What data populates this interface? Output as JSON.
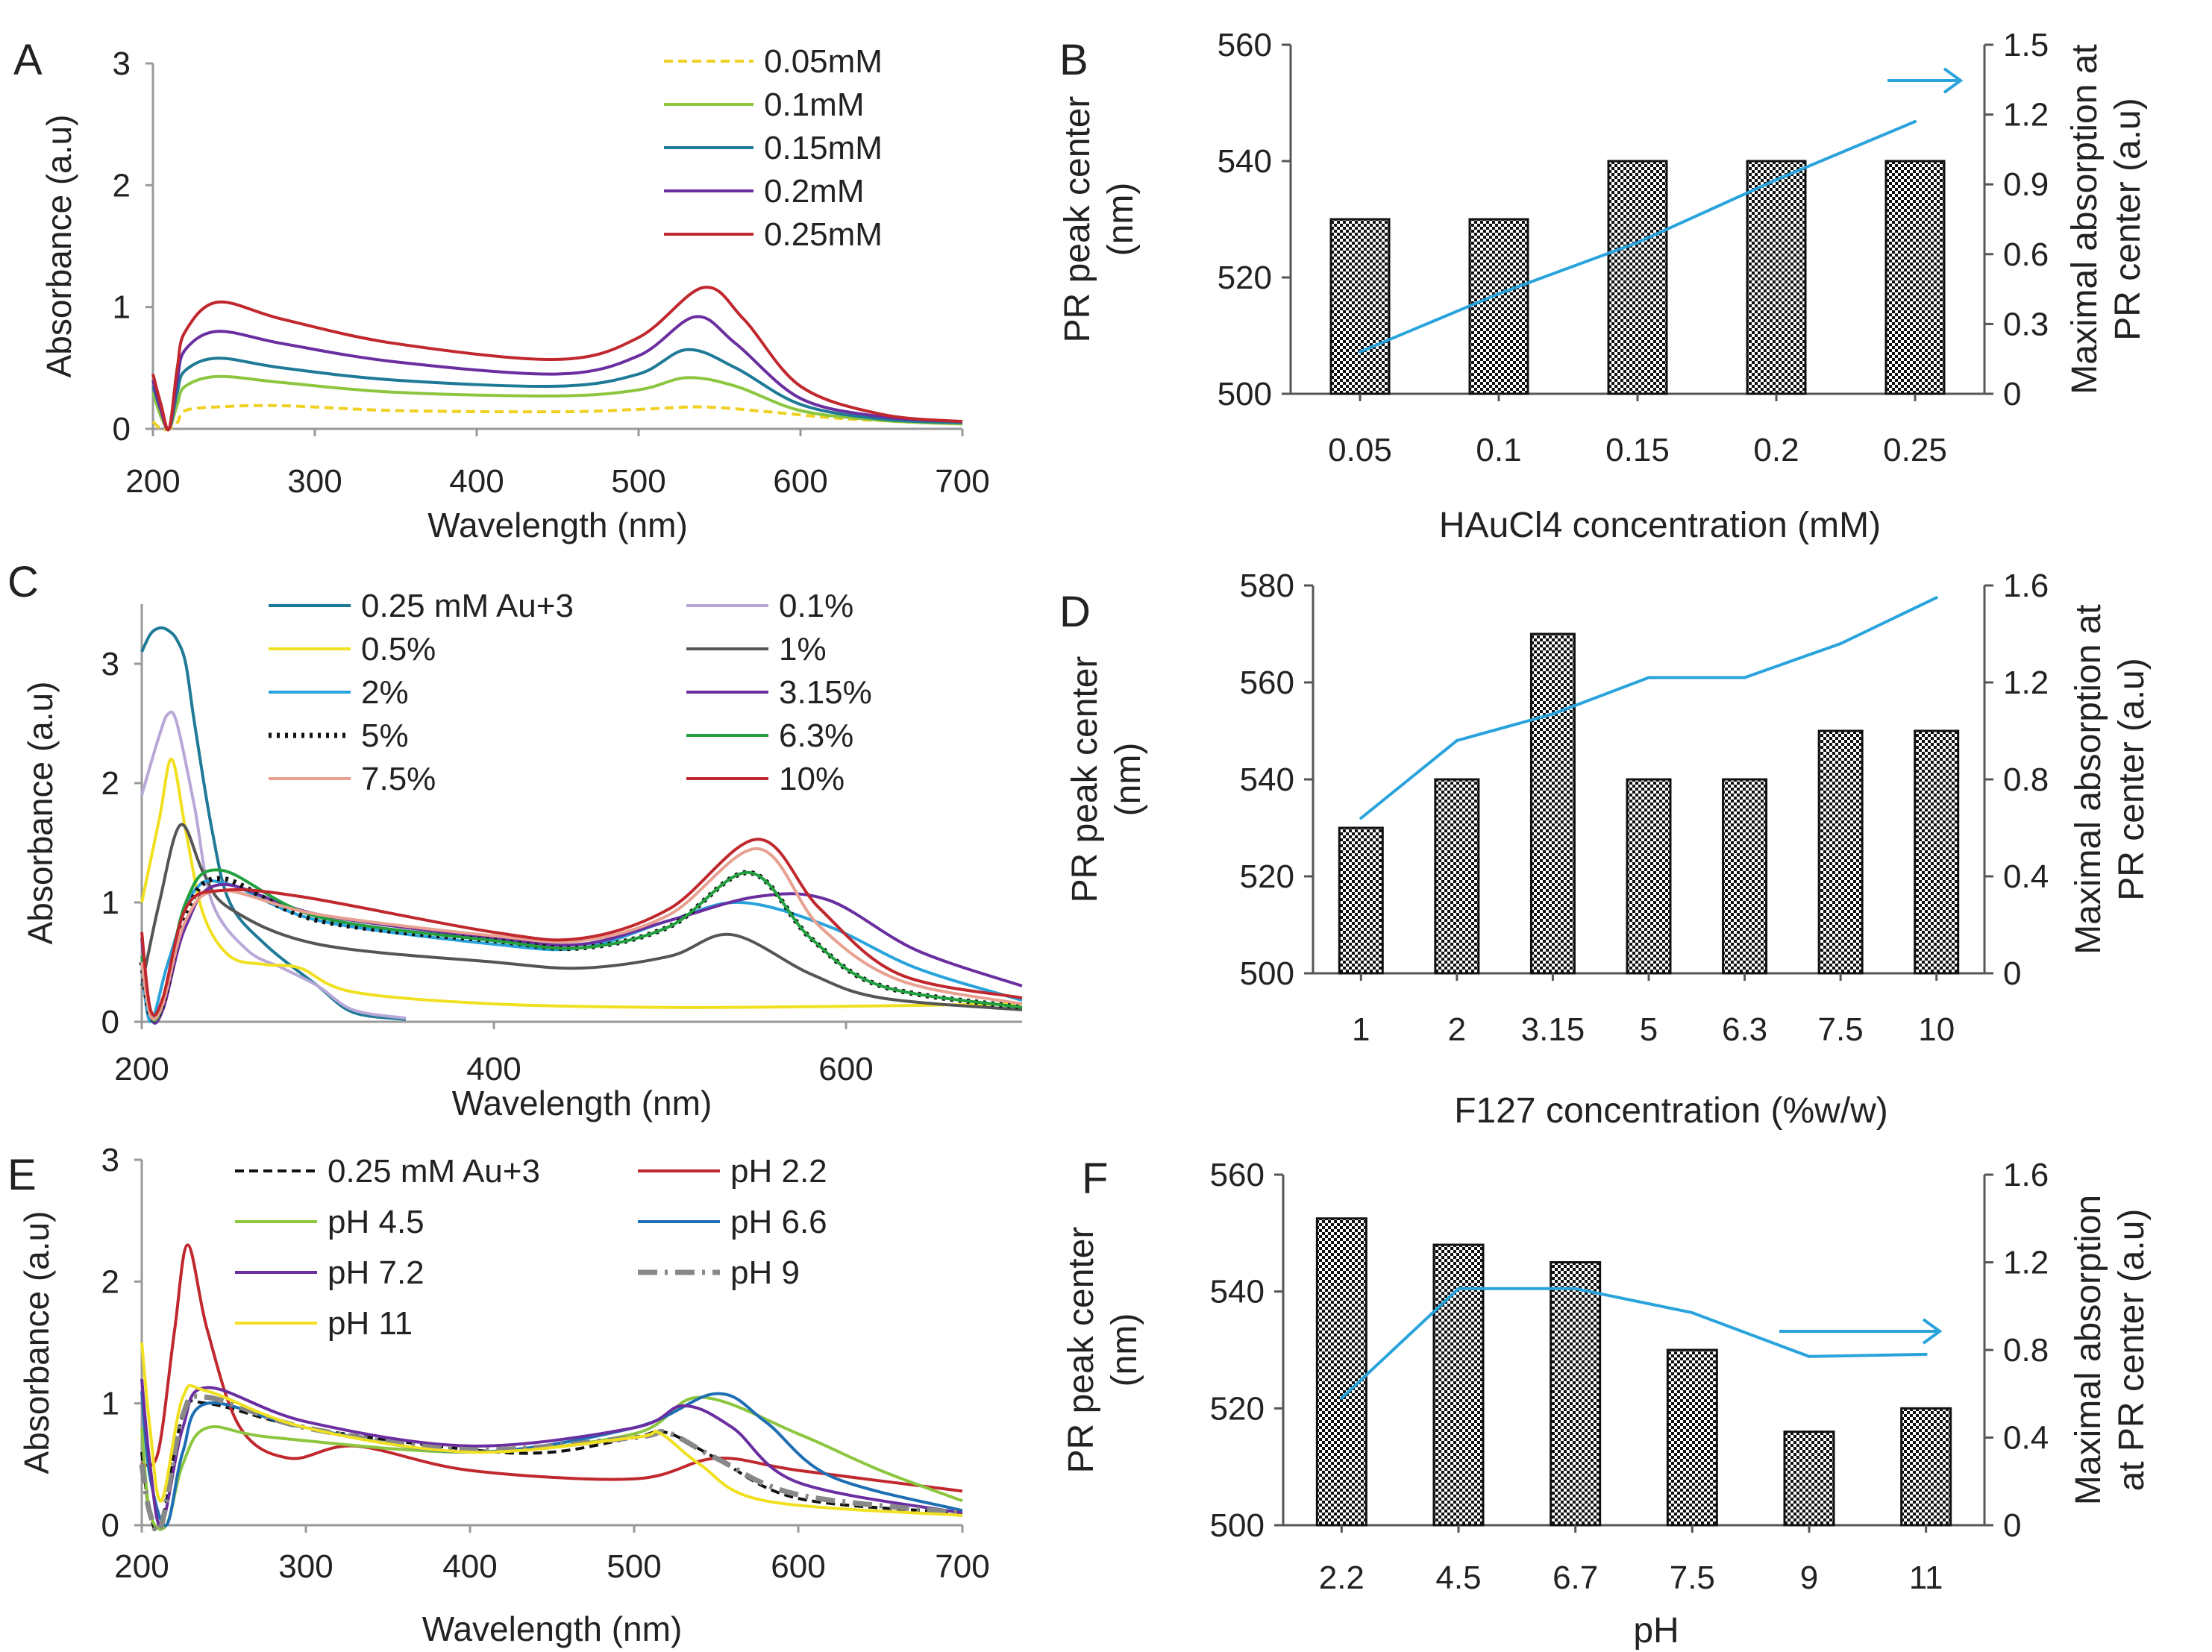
{
  "panels": {
    "A": "A",
    "B": "B",
    "C": "C",
    "D": "D",
    "E": "E",
    "F": "F"
  },
  "chart_data": [
    {
      "id": "A",
      "type": "line",
      "xlabel": "Wavelength (nm)",
      "ylabel": "Absorbance (a.u)",
      "xlim": [
        200,
        700
      ],
      "ylim": [
        0,
        3
      ],
      "xticks": [
        "200",
        "300",
        "400",
        "500",
        "600",
        "700"
      ],
      "yticks": [
        "0",
        "1",
        "2",
        "3"
      ],
      "series": [
        {
          "name": "0.05mM",
          "color": "#f0d020",
          "dash": true,
          "x": [
            200,
            205,
            210,
            215,
            220,
            240,
            280,
            350,
            450,
            500,
            540,
            580,
            620,
            660,
            700
          ],
          "y": [
            0.06,
            0.0,
            0.0,
            0.05,
            0.15,
            0.18,
            0.19,
            0.15,
            0.14,
            0.16,
            0.18,
            0.14,
            0.09,
            0.06,
            0.04
          ]
        },
        {
          "name": "0.1mM",
          "color": "#8cc63f",
          "x": [
            200,
            205,
            210,
            215,
            220,
            240,
            280,
            350,
            450,
            500,
            530,
            560,
            600,
            650,
            700
          ],
          "y": [
            0.3,
            0.1,
            0.0,
            0.2,
            0.35,
            0.43,
            0.38,
            0.3,
            0.27,
            0.32,
            0.42,
            0.35,
            0.15,
            0.07,
            0.04
          ]
        },
        {
          "name": "0.15mM",
          "color": "#1e7a96",
          "x": [
            200,
            205,
            210,
            215,
            220,
            240,
            280,
            350,
            450,
            500,
            530,
            560,
            600,
            650,
            700
          ],
          "y": [
            0.35,
            0.15,
            0.0,
            0.3,
            0.48,
            0.58,
            0.5,
            0.4,
            0.35,
            0.45,
            0.65,
            0.5,
            0.2,
            0.08,
            0.05
          ]
        },
        {
          "name": "0.2mM",
          "color": "#6a2ea0",
          "x": [
            200,
            205,
            210,
            215,
            220,
            240,
            280,
            350,
            450,
            500,
            535,
            560,
            600,
            650,
            700
          ],
          "y": [
            0.4,
            0.15,
            0.0,
            0.4,
            0.65,
            0.8,
            0.7,
            0.55,
            0.45,
            0.6,
            0.92,
            0.7,
            0.25,
            0.1,
            0.06
          ]
        },
        {
          "name": "0.25mM",
          "color": "#c0282d",
          "x": [
            200,
            205,
            210,
            215,
            220,
            240,
            280,
            350,
            450,
            500,
            540,
            565,
            600,
            650,
            700
          ],
          "y": [
            0.45,
            0.2,
            0.0,
            0.5,
            0.8,
            1.04,
            0.9,
            0.7,
            0.57,
            0.75,
            1.16,
            0.9,
            0.35,
            0.12,
            0.06
          ]
        }
      ]
    },
    {
      "id": "B",
      "type": "bar",
      "xlabel": "HAuCl4 concentration (mM)",
      "ylabel": [
        "PR peak center",
        "(nm)"
      ],
      "y2label": [
        "Maximal absorption at",
        "PR center (a.u)"
      ],
      "categories": [
        "0.05",
        "0.1",
        "0.15",
        "0.2",
        "0.25"
      ],
      "values": [
        530,
        530,
        540,
        540,
        540
      ],
      "ylim": [
        500,
        560
      ],
      "yticks": [
        "500",
        "520",
        "540",
        "560"
      ],
      "y2lim": [
        0,
        1.5
      ],
      "y2ticks": [
        "0",
        "0.3",
        "0.6",
        "0.9",
        "1.2",
        "1.5"
      ],
      "line": {
        "name": "Maximal absorption",
        "color": "#29a3dc",
        "values": [
          0.18,
          0.43,
          0.65,
          0.92,
          1.17
        ]
      },
      "arrow": "right-axis"
    },
    {
      "id": "C",
      "type": "line",
      "xlabel": "Wavelength (nm)",
      "ylabel": "Absorbance (a.u)",
      "xlim": [
        200,
        700
      ],
      "ylim": [
        0,
        3.5
      ],
      "xticks": [
        "200",
        "400",
        "600"
      ],
      "yticks": [
        "0",
        "1",
        "2",
        "3"
      ],
      "series": [
        {
          "name": "0.25 mM Au+3",
          "color": "#1e7a96",
          "x": [
            200,
            205,
            210,
            215,
            220,
            225,
            230,
            240,
            250,
            270,
            300,
            320,
            350
          ],
          "y": [
            3.1,
            3.25,
            3.3,
            3.28,
            3.2,
            3.0,
            2.5,
            1.6,
            1.0,
            0.65,
            0.3,
            0.08,
            0.02
          ]
        },
        {
          "name": "0.1%",
          "color": "#b8a8d8",
          "x": [
            200,
            210,
            215,
            220,
            230,
            240,
            260,
            280,
            300,
            320,
            350
          ],
          "y": [
            1.9,
            2.4,
            2.58,
            2.5,
            1.8,
            1.0,
            0.6,
            0.45,
            0.3,
            0.1,
            0.03
          ]
        },
        {
          "name": "0.5%",
          "color": "#f0e020",
          "x": [
            200,
            210,
            217,
            225,
            235,
            250,
            270,
            290,
            320,
            400,
            500,
            600,
            700
          ],
          "y": [
            1.0,
            1.7,
            2.2,
            1.6,
            0.9,
            0.55,
            0.48,
            0.45,
            0.25,
            0.15,
            0.12,
            0.13,
            0.15
          ]
        },
        {
          "name": "1%",
          "color": "#555555",
          "x": [
            200,
            210,
            222,
            235,
            250,
            300,
            400,
            450,
            500,
            535,
            580,
            620,
            700
          ],
          "y": [
            0.3,
            1.0,
            1.65,
            1.25,
            0.95,
            0.65,
            0.5,
            0.45,
            0.55,
            0.73,
            0.4,
            0.2,
            0.1
          ]
        },
        {
          "name": "2%",
          "color": "#29a3dc",
          "x": [
            200,
            205,
            215,
            230,
            250,
            300,
            400,
            450,
            500,
            540,
            590,
            640,
            700
          ],
          "y": [
            0.5,
            0.0,
            0.5,
            1.1,
            1.15,
            0.85,
            0.65,
            0.62,
            0.85,
            1.0,
            0.8,
            0.45,
            0.18
          ]
        },
        {
          "name": "3.15%",
          "color": "#6a2ea0",
          "x": [
            200,
            205,
            212,
            225,
            245,
            300,
            400,
            450,
            500,
            550,
            590,
            640,
            700
          ],
          "y": [
            0.7,
            0.05,
            0.1,
            0.8,
            1.15,
            0.9,
            0.7,
            0.65,
            0.85,
            1.05,
            1.02,
            0.6,
            0.3
          ]
        },
        {
          "name": "5%",
          "color": "#111111",
          "dotted": true,
          "x": [
            200,
            205,
            212,
            225,
            245,
            300,
            400,
            450,
            500,
            545,
            580,
            620,
            700
          ],
          "y": [
            0.5,
            0.05,
            0.15,
            0.9,
            1.2,
            0.85,
            0.68,
            0.62,
            0.8,
            1.25,
            0.7,
            0.3,
            0.12
          ]
        },
        {
          "name": "6.3%",
          "color": "#22a040",
          "x": [
            200,
            205,
            212,
            225,
            245,
            300,
            400,
            450,
            500,
            545,
            580,
            620,
            700
          ],
          "y": [
            0.55,
            0.05,
            0.15,
            1.0,
            1.27,
            0.88,
            0.68,
            0.62,
            0.8,
            1.25,
            0.7,
            0.3,
            0.12
          ]
        },
        {
          "name": "7.5%",
          "color": "#e8a090",
          "x": [
            200,
            205,
            212,
            225,
            245,
            300,
            400,
            450,
            500,
            550,
            585,
            630,
            700
          ],
          "y": [
            0.5,
            0.05,
            0.15,
            0.85,
            1.1,
            0.9,
            0.72,
            0.68,
            0.9,
            1.45,
            0.8,
            0.35,
            0.15
          ]
        },
        {
          "name": "10%",
          "color": "#c0282d",
          "x": [
            200,
            205,
            212,
            225,
            245,
            290,
            400,
            450,
            500,
            550,
            585,
            630,
            700
          ],
          "y": [
            0.75,
            0.1,
            0.2,
            0.95,
            1.1,
            1.05,
            0.75,
            0.7,
            0.95,
            1.53,
            0.95,
            0.4,
            0.2
          ]
        }
      ]
    },
    {
      "id": "D",
      "type": "bar",
      "xlabel": "F127 concentration (%w/w)",
      "ylabel": [
        "PR peak center",
        "(nm)"
      ],
      "y2label": [
        "Maximal absorption at",
        "PR center (a.u)"
      ],
      "categories": [
        "1",
        "2",
        "3.15",
        "5",
        "6.3",
        "7.5",
        "10"
      ],
      "values": [
        530,
        540,
        570,
        540,
        540,
        550,
        550
      ],
      "ylim": [
        500,
        580
      ],
      "yticks": [
        "500",
        "520",
        "540",
        "560",
        "580"
      ],
      "y2lim": [
        0,
        1.6
      ],
      "y2ticks": [
        "0",
        "0.4",
        "0.8",
        "1.2",
        "1.6"
      ],
      "line": {
        "name": "Maximal absorption",
        "color": "#29a3dc",
        "values": [
          0.64,
          0.96,
          1.07,
          1.22,
          1.22,
          1.36,
          1.55
        ]
      }
    },
    {
      "id": "E",
      "type": "line",
      "xlabel": "Wavelength (nm)",
      "ylabel": "Absorbance (a.u)",
      "xlim": [
        200,
        700
      ],
      "ylim": [
        0,
        3
      ],
      "xticks": [
        "200",
        "300",
        "400",
        "500",
        "600",
        "700"
      ],
      "yticks": [
        "0",
        "1",
        "2",
        "3"
      ],
      "series": [
        {
          "name": "0.25 mM Au+3",
          "color": "#111111",
          "dash": true,
          "x": [
            200,
            205,
            212,
            225,
            240,
            300,
            400,
            450,
            500,
            520,
            550,
            600,
            700
          ],
          "y": [
            0.6,
            0.1,
            0.0,
            0.9,
            1.0,
            0.8,
            0.62,
            0.6,
            0.72,
            0.76,
            0.55,
            0.22,
            0.1
          ]
        },
        {
          "name": "pH 2.2",
          "color": "#c0282d",
          "x": [
            200,
            210,
            220,
            228,
            240,
            260,
            290,
            330,
            400,
            500,
            550,
            600,
            700
          ],
          "y": [
            0.5,
            0.6,
            1.6,
            2.3,
            1.6,
            0.8,
            0.55,
            0.65,
            0.45,
            0.38,
            0.55,
            0.45,
            0.28
          ]
        },
        {
          "name": "pH 4.5",
          "color": "#8cc63f",
          "x": [
            200,
            205,
            215,
            225,
            240,
            280,
            400,
            500,
            540,
            600,
            650,
            700
          ],
          "y": [
            0.8,
            0.1,
            0.0,
            0.5,
            0.8,
            0.72,
            0.6,
            0.75,
            1.05,
            0.75,
            0.45,
            0.2
          ]
        },
        {
          "name": "pH 6.6",
          "color": "#1e6eb4",
          "x": [
            200,
            205,
            215,
            225,
            240,
            300,
            400,
            500,
            550,
            580,
            620,
            700
          ],
          "y": [
            1.1,
            0.4,
            0.0,
            0.6,
            1.0,
            0.8,
            0.6,
            0.8,
            1.08,
            0.85,
            0.4,
            0.12
          ]
        },
        {
          "name": "pH 7.2",
          "color": "#6a2ea0",
          "x": [
            200,
            205,
            212,
            225,
            240,
            300,
            400,
            500,
            530,
            560,
            600,
            700
          ],
          "y": [
            1.2,
            0.5,
            0.0,
            0.8,
            1.13,
            0.85,
            0.65,
            0.8,
            0.98,
            0.8,
            0.35,
            0.1
          ]
        },
        {
          "name": "pH 9",
          "color": "#888888",
          "dashdot": true,
          "x": [
            200,
            205,
            212,
            225,
            240,
            300,
            400,
            500,
            520,
            550,
            600,
            700
          ],
          "y": [
            0.5,
            0.1,
            0.0,
            0.9,
            1.05,
            0.8,
            0.62,
            0.72,
            0.76,
            0.55,
            0.25,
            0.1
          ]
        },
        {
          "name": "pH 11",
          "color": "#f0e020",
          "x": [
            200,
            205,
            212,
            225,
            240,
            300,
            400,
            500,
            515,
            540,
            580,
            700
          ],
          "y": [
            1.5,
            0.8,
            0.2,
            1.05,
            1.1,
            0.8,
            0.6,
            0.72,
            0.76,
            0.5,
            0.2,
            0.08
          ]
        }
      ]
    },
    {
      "id": "F",
      "type": "bar",
      "xlabel": "pH",
      "ylabel": [
        "PR peak center",
        "(nm)"
      ],
      "y2label": [
        "Maximal absorption",
        "at PR center (a.u)"
      ],
      "categories": [
        "2.2",
        "4.5",
        "6.7",
        "7.5",
        "9",
        "11"
      ],
      "values": [
        552.5,
        548,
        545,
        530,
        516,
        520
      ],
      "ylim": [
        500,
        560
      ],
      "yticks": [
        "500",
        "520",
        "540",
        "560"
      ],
      "y2lim": [
        0,
        1.6
      ],
      "y2ticks": [
        "0",
        "0.4",
        "0.8",
        "1.2",
        "1.6"
      ],
      "line": {
        "name": "Maximal absorption",
        "color": "#29a3dc",
        "values": [
          0.58,
          1.08,
          1.08,
          0.97,
          0.77,
          0.78
        ]
      },
      "arrow": "right-axis"
    }
  ]
}
